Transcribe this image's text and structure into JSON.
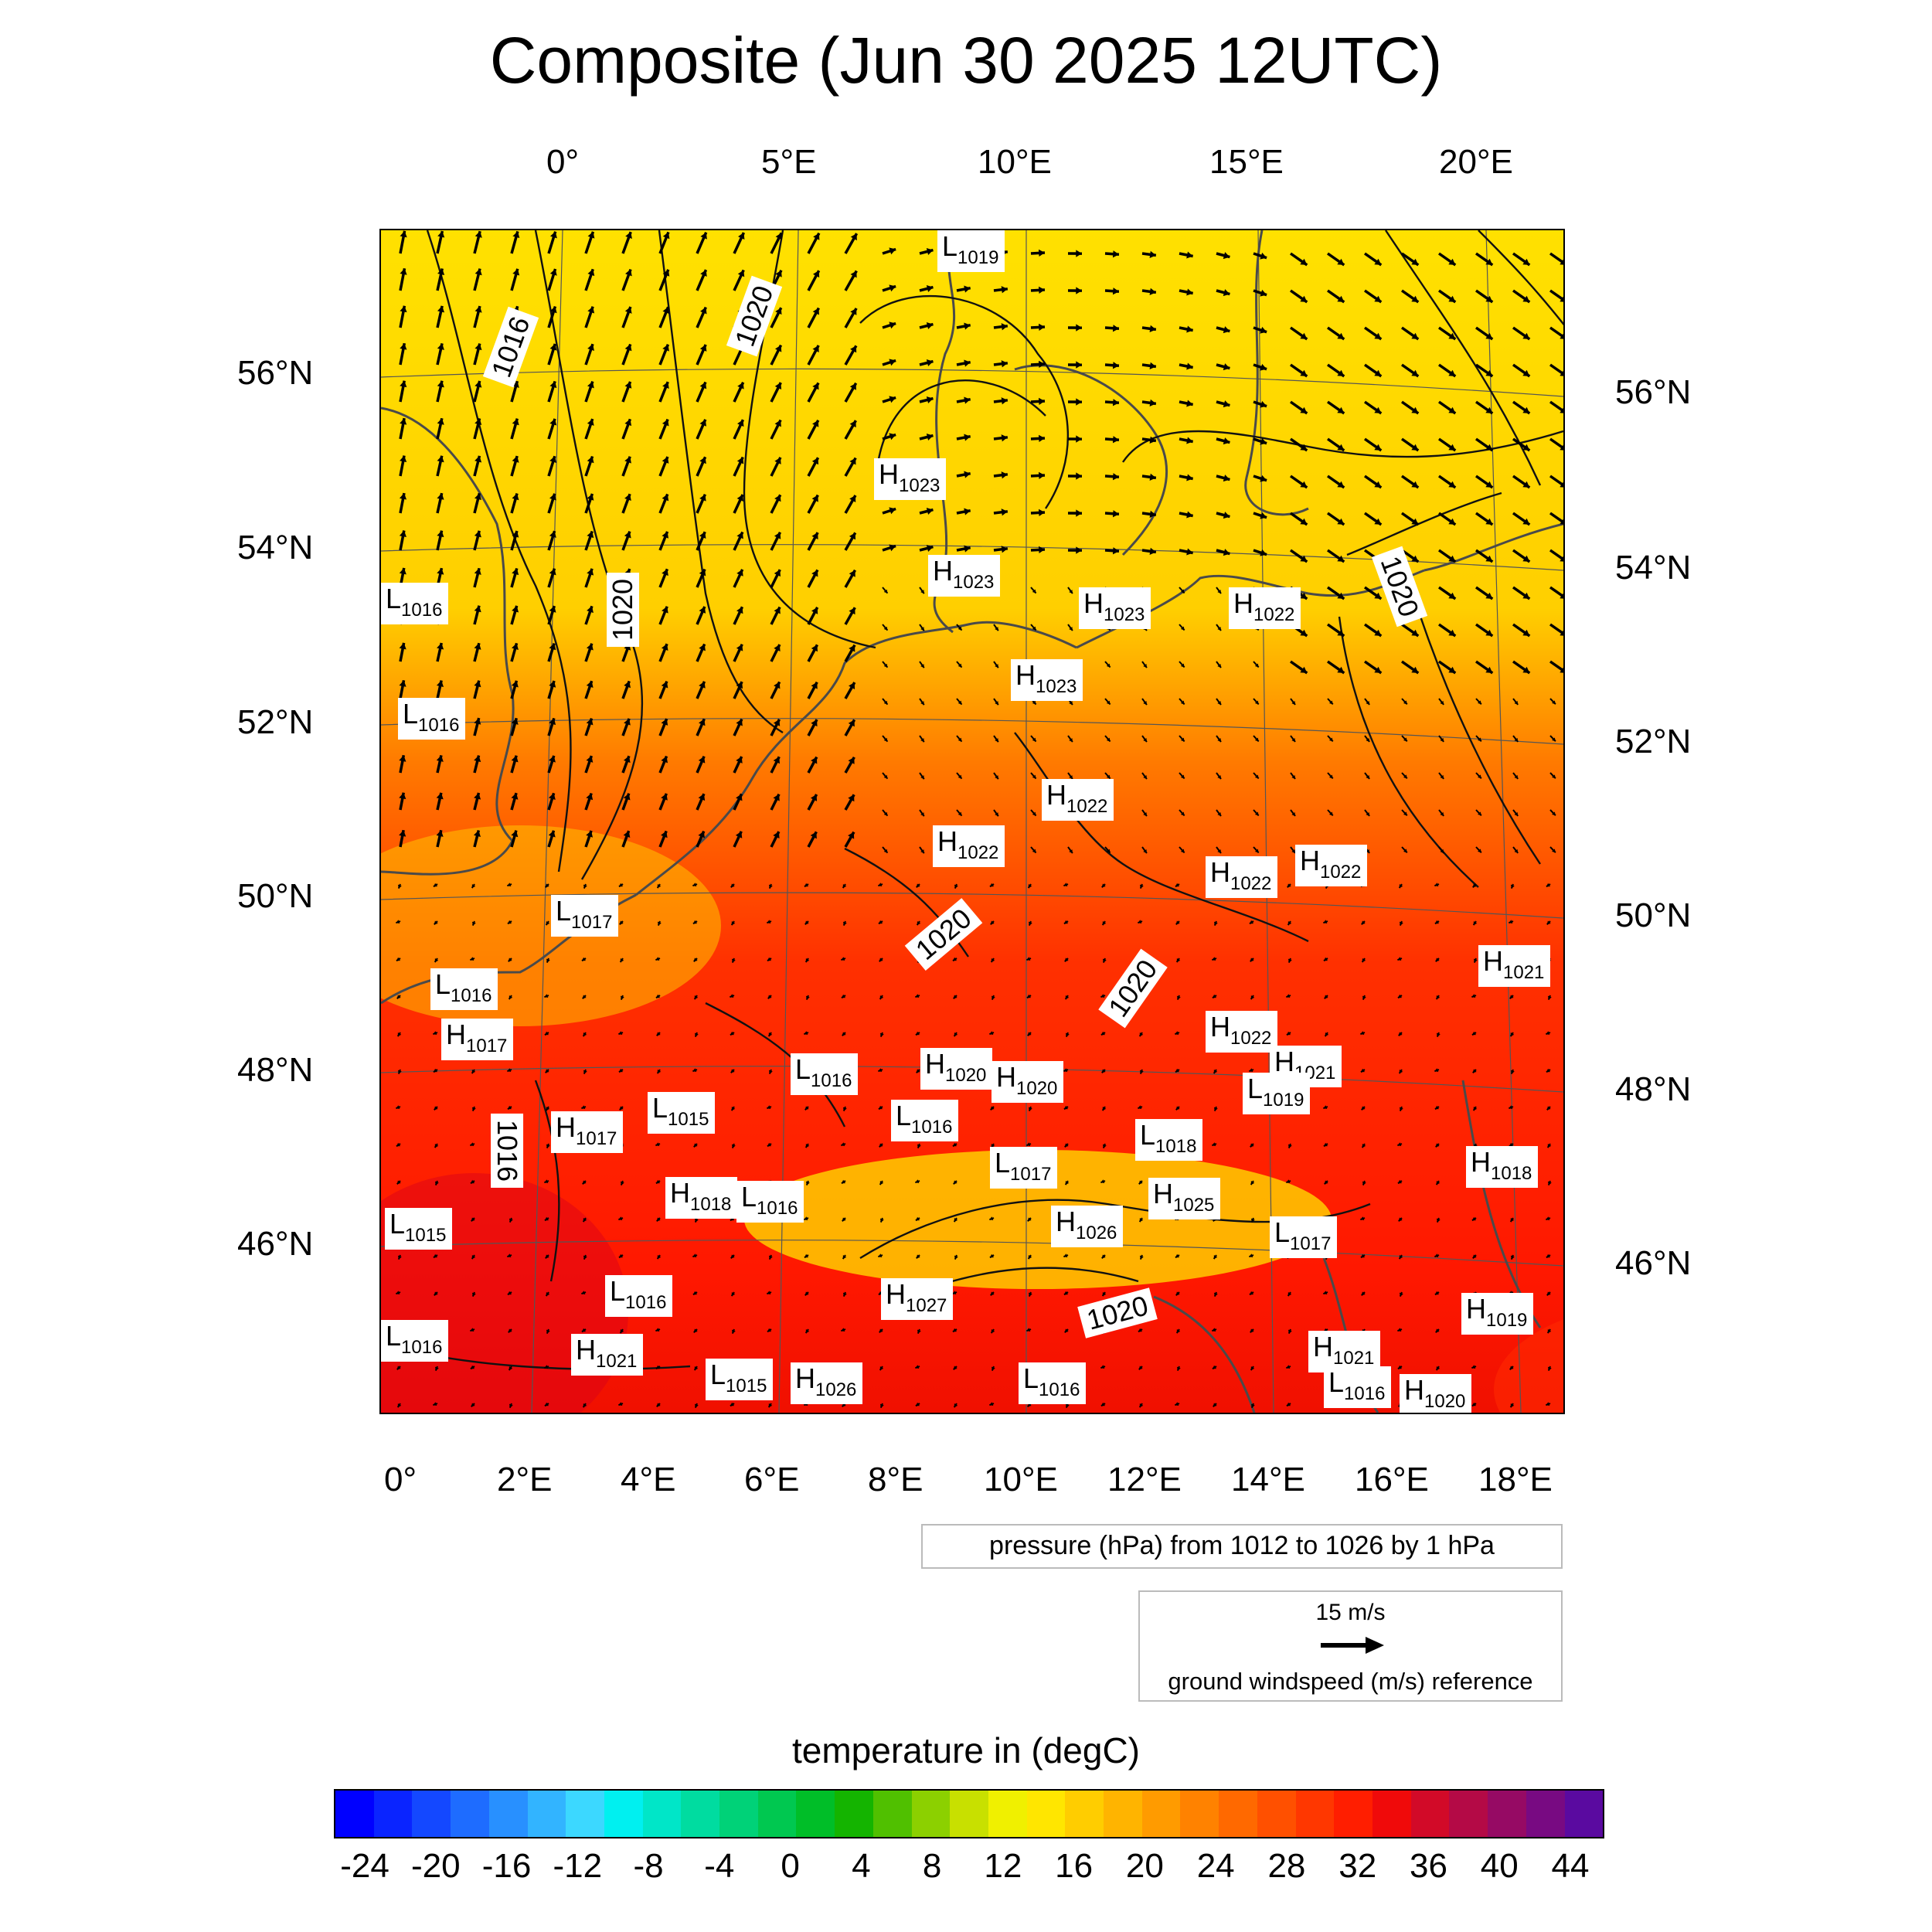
{
  "title": "Composite (Jun 30 2025 12UTC)",
  "top_lon_labels": [
    "0°",
    "5°E",
    "10°E",
    "15°E",
    "20°E"
  ],
  "bottom_lon_labels": [
    "0°",
    "2°E",
    "4°E",
    "6°E",
    "8°E",
    "10°E",
    "12°E",
    "14°E",
    "16°E",
    "18°E"
  ],
  "left_lat_labels": [
    "56°N",
    "54°N",
    "52°N",
    "50°N",
    "48°N",
    "46°N"
  ],
  "right_lat_labels": [
    "56°N",
    "54°N",
    "52°N",
    "50°N",
    "48°N",
    "46°N"
  ],
  "pressure_centers": [
    {
      "type": "L",
      "value": "1019"
    },
    {
      "type": "H",
      "value": "1023"
    },
    {
      "type": "H",
      "value": "1023"
    },
    {
      "type": "H",
      "value": "1023"
    },
    {
      "type": "H",
      "value": "1022"
    },
    {
      "type": "H",
      "value": "1023"
    },
    {
      "type": "L",
      "value": "1016"
    },
    {
      "type": "L",
      "value": "1016"
    },
    {
      "type": "H",
      "value": "1022"
    },
    {
      "type": "H",
      "value": "1022"
    },
    {
      "type": "H",
      "value": "1022"
    },
    {
      "type": "H",
      "value": "1022"
    },
    {
      "type": "L",
      "value": "1017"
    },
    {
      "type": "L",
      "value": "1016"
    },
    {
      "type": "H",
      "value": "1021"
    },
    {
      "type": "H",
      "value": "1017"
    },
    {
      "type": "H",
      "value": "1022"
    },
    {
      "type": "H",
      "value": "1021"
    },
    {
      "type": "L",
      "value": "1016"
    },
    {
      "type": "H",
      "value": "1020"
    },
    {
      "type": "H",
      "value": "1020"
    },
    {
      "type": "L",
      "value": "1019"
    },
    {
      "type": "L",
      "value": "1015"
    },
    {
      "type": "H",
      "value": "1017"
    },
    {
      "type": "L",
      "value": "1016"
    },
    {
      "type": "L",
      "value": "1018"
    },
    {
      "type": "L",
      "value": "1017"
    },
    {
      "type": "H",
      "value": "1018"
    },
    {
      "type": "H",
      "value": "1018"
    },
    {
      "type": "L",
      "value": "1016"
    },
    {
      "type": "H",
      "value": "1025"
    },
    {
      "type": "H",
      "value": "1026"
    },
    {
      "type": "L",
      "value": "1015"
    },
    {
      "type": "L",
      "value": "1017"
    },
    {
      "type": "L",
      "value": "1016"
    },
    {
      "type": "H",
      "value": "1027"
    },
    {
      "type": "H",
      "value": "1019"
    },
    {
      "type": "L",
      "value": "1016"
    },
    {
      "type": "H",
      "value": "1021"
    },
    {
      "type": "H",
      "value": "1021"
    },
    {
      "type": "L",
      "value": "1015"
    },
    {
      "type": "H",
      "value": "1026"
    },
    {
      "type": "L",
      "value": "1016"
    },
    {
      "type": "L",
      "value": "1016"
    },
    {
      "type": "H",
      "value": "1020"
    }
  ],
  "isobar_labels": [
    "1016",
    "1020",
    "1020",
    "1020",
    "1020",
    "1020",
    "1016",
    "1020"
  ],
  "pressure_legend": "pressure (hPa) from 1012 to 1026 by 1 hPa",
  "wind_reference": {
    "speed": "15 m/s",
    "label": "ground windspeed (m/s) reference"
  },
  "colorbar": {
    "title": "temperature in (degC)",
    "labels": [
      "-24",
      "-20",
      "-16",
      "-12",
      "-8",
      "-4",
      "0",
      "4",
      "8",
      "12",
      "16",
      "20",
      "24",
      "28",
      "32",
      "36",
      "40",
      "44"
    ],
    "colors": [
      "#0000ff",
      "#0a24ff",
      "#1448ff",
      "#1e6cff",
      "#2890ff",
      "#32b4ff",
      "#3cd8ff",
      "#00f0f0",
      "#00e6c8",
      "#00dca0",
      "#00d278",
      "#00c850",
      "#00be28",
      "#14b400",
      "#50c000",
      "#8cd000",
      "#c8e000",
      "#f0f000",
      "#ffe600",
      "#ffcd00",
      "#ffb400",
      "#ff9b00",
      "#ff8200",
      "#ff6900",
      "#ff5000",
      "#ff3700",
      "#ff1e00",
      "#f00a0a",
      "#d20a28",
      "#b40a46",
      "#960a64",
      "#780a82",
      "#5a0aa0"
    ]
  }
}
